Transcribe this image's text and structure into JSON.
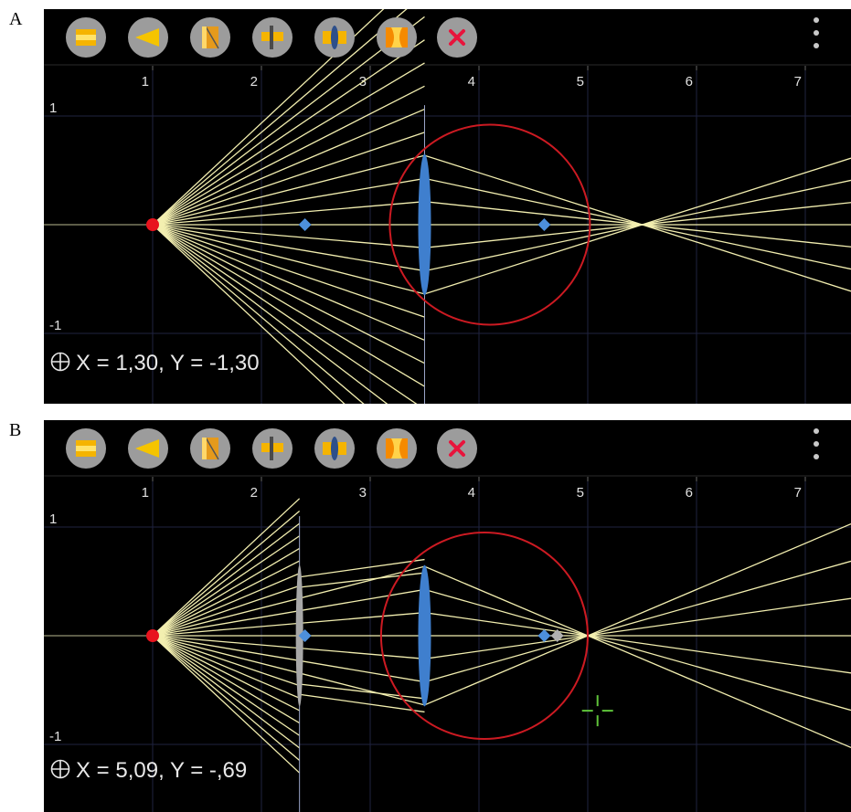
{
  "panels": [
    {
      "label": "A",
      "toolbar": {
        "tools": [
          {
            "icon": "flat-bar-icon"
          },
          {
            "icon": "prism-icon"
          },
          {
            "icon": "mirror-icon"
          },
          {
            "icon": "ray-source-icon"
          },
          {
            "icon": "lens-icon"
          },
          {
            "icon": "concave-lens-icon"
          },
          {
            "icon": "delete-icon"
          }
        ],
        "menu_icon": "overflow-menu-icon"
      },
      "axis": {
        "x_ticks": [
          "1",
          "2",
          "3",
          "4",
          "5",
          "6",
          "7"
        ],
        "y_ticks": [
          "1",
          "-1"
        ]
      },
      "scene": {
        "source": {
          "x": 1.0,
          "y": 0
        },
        "focus_left": {
          "x": 2.4,
          "y": 0
        },
        "focus_right": {
          "x": 4.6,
          "y": 0
        },
        "lens": {
          "x": 3.5,
          "half_height": 0.65
        },
        "circle": {
          "cx": 4.1,
          "cy": 0,
          "r": 0.92
        },
        "image_point": {
          "x": 5.5,
          "y": 0
        },
        "screen_x": 3.5,
        "extra_lens": null,
        "cursor": null
      },
      "coord_readout": "X = 1,30, Y = -1,30",
      "coord_icon": "crosshair-circle-icon"
    },
    {
      "label": "B",
      "toolbar": {
        "tools": [
          {
            "icon": "flat-bar-icon"
          },
          {
            "icon": "prism-icon"
          },
          {
            "icon": "mirror-icon"
          },
          {
            "icon": "ray-source-icon"
          },
          {
            "icon": "lens-icon"
          },
          {
            "icon": "concave-lens-icon"
          },
          {
            "icon": "delete-icon"
          }
        ],
        "menu_icon": "overflow-menu-icon"
      },
      "axis": {
        "x_ticks": [
          "1",
          "2",
          "3",
          "4",
          "5",
          "6",
          "7"
        ],
        "y_ticks": [
          "1",
          "-1"
        ]
      },
      "scene": {
        "source": {
          "x": 1.0,
          "y": 0
        },
        "focus_left": {
          "x": 2.4,
          "y": 0
        },
        "focus_right": {
          "x": 4.6,
          "y": 0
        },
        "focus_right_2": {
          "x": 4.72,
          "y": 0
        },
        "lens": {
          "x": 3.5,
          "half_height": 0.65
        },
        "circle": {
          "cx": 4.05,
          "cy": 0,
          "r": 0.95
        },
        "image_point": {
          "x": 5.0,
          "y": 0
        },
        "screen_x": 2.35,
        "extra_lens": {
          "x": 2.35,
          "half_height": 0.65
        },
        "cursor": {
          "x": 5.09,
          "y": -0.69
        }
      },
      "coord_readout": "X = 5,09, Y = -,69",
      "coord_icon": "crosshair-circle-icon"
    }
  ],
  "colors": {
    "background": "#000000",
    "ray": "#f3efb0",
    "grid": "#1f2340",
    "axis_line": "#b8b890",
    "tick_text": "#e0e0e0",
    "source": "#e8141e",
    "lens": "#3f7fce",
    "focus": "#4d8fdc",
    "circle": "#cc1a22",
    "extra_lens": "#a8a8a8",
    "cursor": "#5fc43a"
  }
}
